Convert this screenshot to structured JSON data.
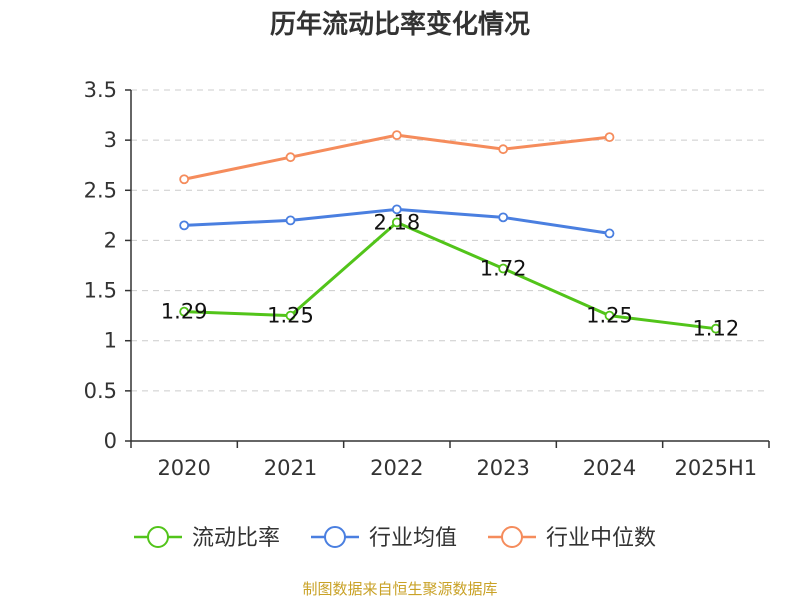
{
  "chart_data": {
    "type": "line",
    "title": "历年流动比率变化情况",
    "categories": [
      "2020",
      "2021",
      "2022",
      "2023",
      "2024",
      "2025H1"
    ],
    "y_ticks": [
      "0",
      "0.5",
      "1",
      "1.5",
      "2",
      "2.5",
      "3",
      "3.5"
    ],
    "ylim": [
      0,
      3.5
    ],
    "grid": true,
    "legend_position": "bottom",
    "series": [
      {
        "name": "流动比率",
        "color": "#52c41a",
        "values": [
          1.29,
          1.25,
          2.18,
          1.72,
          1.25,
          1.12
        ],
        "labels": [
          "1.29",
          "1.25",
          "2.18",
          "1.72",
          "1.25",
          "1.12"
        ]
      },
      {
        "name": "行业均值",
        "color": "#4a7fe0",
        "values": [
          2.15,
          2.2,
          2.31,
          2.23,
          2.07,
          null
        ]
      },
      {
        "name": "行业中位数",
        "color": "#f58c5c",
        "values": [
          2.61,
          2.83,
          3.05,
          2.91,
          3.03,
          null
        ]
      }
    ]
  },
  "footer": {
    "source": "制图数据来自恒生聚源数据库"
  }
}
